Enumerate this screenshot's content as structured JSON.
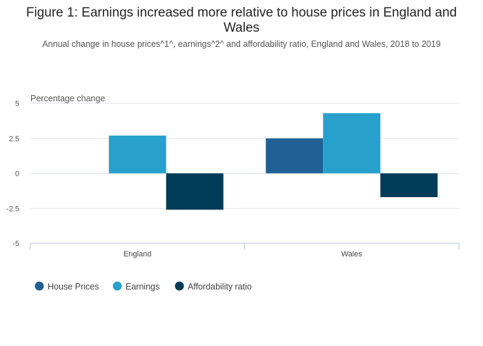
{
  "title": "Figure 1: Earnings increased more relative to house prices in England and Wales",
  "subtitle": "Annual change in house prices^1^, earnings^2^ and affordability ratio, England and Wales, 2018 to 2019",
  "chart_data": {
    "type": "bar",
    "ylabel": "Percentage change",
    "xlabel": "",
    "categories": [
      "England",
      "Wales"
    ],
    "ylim": [
      -5,
      5
    ],
    "yticks": [
      5,
      2.5,
      0,
      -2.5,
      -5
    ],
    "ytick_labels": [
      "5",
      "2.5",
      "0",
      "-2.5",
      "-5"
    ],
    "grid": true,
    "legend_position": "bottom-left",
    "series": [
      {
        "name": "House Prices",
        "color": "#206095",
        "values": [
          0,
          2.5
        ]
      },
      {
        "name": "Earnings",
        "color": "#27a0cc",
        "values": [
          2.7,
          4.3
        ]
      },
      {
        "name": "Affordability ratio",
        "color": "#003c57",
        "values": [
          -2.6,
          -1.7
        ]
      }
    ]
  }
}
